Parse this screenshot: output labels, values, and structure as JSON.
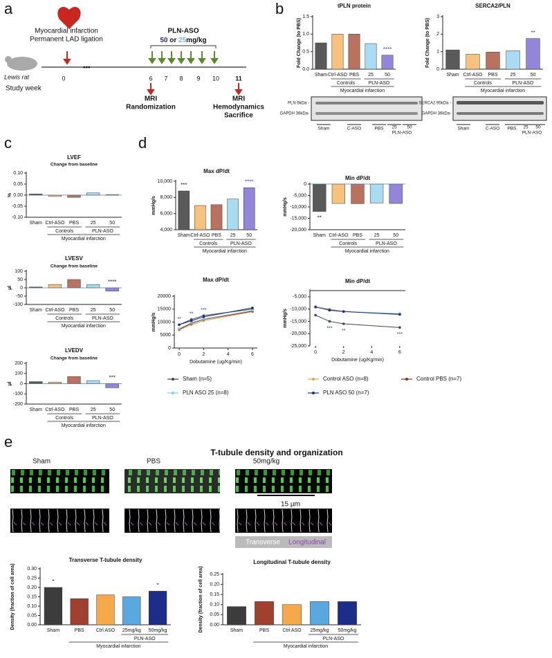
{
  "panel_letters": [
    "a",
    "b",
    "c",
    "d",
    "e"
  ],
  "panel_a": {
    "animal": "Lewis rat",
    "mi": "Myocardial infarction",
    "ligation": "Permanent LAD ligation",
    "aso": "PLN-ASO",
    "dose50": "50",
    "or": " or ",
    "dose25": "25",
    "unit": "mg/kg",
    "study_week": "Study week",
    "weeks": [
      "0",
      "6",
      "7",
      "8",
      "9",
      "10",
      "11"
    ],
    "mri1": "MRI",
    "randomization": "Randomization",
    "mri2": "MRI",
    "hemodynamics": "Hemodynamics",
    "sacrifice": "Sacrifice"
  },
  "panel_b_blots": {
    "pln": "PLN 6kDa -",
    "gapdh1": "GAPDH 36kDa-",
    "lanes1": [
      "Sham",
      "C-ASO",
      "PBS",
      "25",
      "50"
    ],
    "aso1": "PLN-ASO",
    "serca": "SERCA2 95kDa -",
    "gapdh2": "GAPDH 36kDa-",
    "lanes2": [
      "Sham",
      "C-ASO",
      "PBS",
      "25",
      "50"
    ],
    "aso2": "PLN-ASO"
  },
  "panel_e": {
    "title": "T-tubule density and organization",
    "images": [
      "Sham",
      "PBS",
      "50mg/kg"
    ],
    "scale": "15 µm",
    "transverse": "Transverse",
    "longitudinal": "Longitudinal"
  },
  "chart_data": [
    {
      "type": "bar",
      "title": "tPLN protein",
      "ylabel": "Fold Change (to PBS)",
      "categories": [
        "Sham",
        "Ctrl-ASO",
        "PBS",
        "25",
        "50"
      ],
      "values": [
        0.75,
        1.0,
        1.0,
        0.73,
        0.4
      ],
      "colors": [
        "#5a5a5a",
        "#f7c27e",
        "#b97260",
        "#a9dcf3",
        "#9385d9"
      ],
      "ylim": [
        0,
        1.5
      ],
      "yticks": [
        {
          "value": 0,
          "label": "0.0"
        },
        0.5,
        {
          "value": 1,
          "label": "1.0"
        },
        1.5
      ],
      "stars": [
        null,
        null,
        null,
        null,
        "****"
      ],
      "star_colors": [
        null,
        null,
        null,
        null,
        "#3b3bb0"
      ],
      "groups": {
        "controls": "Controls",
        "aso": "PLN-ASO",
        "mi": "Myocardial infarction"
      }
    },
    {
      "type": "bar",
      "title": "SERCA2/PLN",
      "ylabel": "Fold Change (to PBS)",
      "categories": [
        "Sham",
        "Ctrl-ASO",
        "PBS",
        "25",
        "50"
      ],
      "values": [
        1.1,
        0.85,
        0.98,
        1.05,
        1.75
      ],
      "colors": [
        "#5a5a5a",
        "#f7c27e",
        "#b97260",
        "#a9dcf3",
        "#9385d9"
      ],
      "ylim": [
        0,
        3
      ],
      "yticks": [
        0,
        1,
        2,
        3
      ],
      "stars": [
        null,
        null,
        null,
        null,
        "**"
      ],
      "star_colors": [
        null,
        null,
        null,
        null,
        "#3b3bb0"
      ],
      "groups": {
        "controls": "Controls",
        "aso": "PLN-ASO",
        "mi": "Myocardial infarction"
      }
    },
    {
      "type": "bar",
      "title": "LVEF",
      "subtitle": "Change from baseline",
      "ylabel": "%",
      "categories": [
        "Sham",
        "Ctrl-ASO",
        "PBS",
        "25",
        "50"
      ],
      "values": [
        0.005,
        -0.006,
        -0.01,
        0.01,
        0.002
      ],
      "colors": [
        "#5a5a5a",
        "#f7c27e",
        "#b97260",
        "#a9dcf3",
        "#9385d9"
      ],
      "ylim": [
        -0.1,
        0.1
      ],
      "yticks": [
        {
          "value": -0.1,
          "label": "-0.10"
        },
        {
          "value": -0.05,
          "label": "-0.05"
        },
        {
          "value": 0,
          "label": "0.00"
        },
        {
          "value": 0.05,
          "label": "0.05"
        },
        {
          "value": 0.1,
          "label": "0.10"
        }
      ],
      "stars": [
        null,
        null,
        null,
        null,
        null
      ],
      "star_colors": [
        null,
        null,
        null,
        null,
        null
      ],
      "groups": {
        "controls": "Controls",
        "aso": "PLN-ASO",
        "mi": "Myocardial infarction"
      }
    },
    {
      "type": "bar",
      "title": "LVESV",
      "subtitle": "Change from baseline",
      "ylabel": "µl",
      "categories": [
        "Sham",
        "Ctrl-ASO",
        "PBS",
        "25",
        "50"
      ],
      "values": [
        5,
        20,
        50,
        20,
        -20
      ],
      "colors": [
        "#5a5a5a",
        "#f7c27e",
        "#b97260",
        "#a9dcf3",
        "#9385d9"
      ],
      "ylim": [
        -100,
        100
      ],
      "yticks": [
        -100,
        -50,
        0,
        50,
        100
      ],
      "stars": [
        null,
        null,
        null,
        null,
        "****"
      ],
      "star_colors": [
        null,
        null,
        null,
        null,
        "#222222"
      ],
      "groups": {
        "controls": "Controls",
        "aso": "PLN-ASO",
        "mi": "Myocardial infarction"
      }
    },
    {
      "type": "bar",
      "title": "LVEDV",
      "subtitle": "Change from baseline",
      "ylabel": "µl",
      "categories": [
        "Sham",
        "Ctrl-ASO",
        "PBS",
        "25",
        "50"
      ],
      "values": [
        20,
        15,
        70,
        30,
        -40
      ],
      "colors": [
        "#5a5a5a",
        "#f7c27e",
        "#b97260",
        "#a9dcf3",
        "#9385d9"
      ],
      "ylim": [
        -200,
        200
      ],
      "yticks": [
        -200,
        -100,
        0,
        100,
        200
      ],
      "stars": [
        null,
        null,
        null,
        null,
        "***"
      ],
      "star_colors": [
        null,
        null,
        null,
        null,
        "#222222"
      ],
      "groups": {
        "controls": "Controls",
        "aso": "PLN-ASO",
        "mi": "Myocardial infarction"
      }
    },
    {
      "type": "bar",
      "title": "Max dP/dt",
      "ylabel": "mmHg/s",
      "categories": [
        "Sham",
        "Ctrl-ASO",
        "PBS",
        "25",
        "50"
      ],
      "values": [
        8800,
        7000,
        7100,
        7800,
        9200
      ],
      "colors": [
        "#5a5a5a",
        "#f7c27e",
        "#b97260",
        "#a9dcf3",
        "#9385d9"
      ],
      "ylim": [
        4000,
        10000
      ],
      "yticks": [
        {
          "value": 4000,
          "label": "4,000"
        },
        {
          "value": 6000,
          "label": "6,000"
        },
        {
          "value": 8000,
          "label": "8,000"
        },
        {
          "value": 10000,
          "label": "10,000"
        }
      ],
      "stars": [
        "***",
        null,
        null,
        null,
        "****"
      ],
      "star_colors": [
        "#222222",
        null,
        null,
        null,
        "#3b3bb0"
      ],
      "groups": {
        "controls": "Controls",
        "aso": "PLN-ASO",
        "mi": "Myocardial infarction"
      }
    },
    {
      "type": "bar",
      "title": "Min dP/dt",
      "ylabel": "mmHg/s",
      "categories": [
        "Sham",
        "Ctrl-ASO",
        "PBS",
        "25",
        "50"
      ],
      "values": [
        -12000,
        -8500,
        -8600,
        -8300,
        -8500
      ],
      "colors": [
        "#5a5a5a",
        "#f7c27e",
        "#b97260",
        "#a9dcf3",
        "#9385d9"
      ],
      "ylim": [
        -20000,
        0
      ],
      "yticks": [
        0,
        {
          "value": -5000,
          "label": "-5,000"
        },
        {
          "value": -10000,
          "label": "-10,000"
        },
        {
          "value": -15000,
          "label": "-15,000"
        },
        {
          "value": -20000,
          "label": "-20,000"
        }
      ],
      "stars": [
        "**",
        null,
        null,
        null,
        null
      ],
      "star_colors": [
        "#222222",
        null,
        null,
        null,
        null
      ],
      "groups": {
        "controls": "Controls",
        "aso": "PLN-ASO",
        "mi": "Myocardial infarction"
      }
    },
    {
      "type": "line",
      "title": "Max dP/dt",
      "ylabel": "mmHg/s",
      "xlabel": "Dobutamine (ug/Kg/min)",
      "x": [
        0,
        1,
        2,
        6
      ],
      "xlim": [
        -0.4,
        6.4
      ],
      "xticks": [
        0,
        2,
        4,
        6
      ],
      "ylim": [
        0,
        20000
      ],
      "yticks": [
        0,
        5000,
        10000,
        15000,
        20000
      ],
      "stars": [
        {
          "x": 0,
          "text": "**"
        },
        {
          "x": 1,
          "text": "**"
        },
        {
          "x": 2,
          "text": "***"
        }
      ],
      "series": [
        {
          "name": "Sham (n=5)",
          "color": "#444444",
          "values": [
            9000,
            11000,
            12500,
            15000
          ]
        },
        {
          "name": "Control ASO (n=8)",
          "color": "#f0a040",
          "values": [
            7000,
            9000,
            10500,
            14000
          ]
        },
        {
          "name": "Control PBS (n=7)",
          "color": "#8b2a1a",
          "values": [
            7200,
            9500,
            11000,
            14200
          ]
        },
        {
          "name": "PLN ASO 25 (n=8)",
          "color": "#7fd0f0",
          "values": [
            7500,
            9800,
            11200,
            14500
          ]
        },
        {
          "name": "PLN ASO 50 (n=7)",
          "color": "#1a2a8a",
          "values": [
            9000,
            10500,
            12000,
            15500
          ]
        }
      ]
    },
    {
      "type": "line",
      "title": "Min dP/dt",
      "ylabel": "mmHg/s",
      "xlabel": "Dobutamine (ug/Kg/min)",
      "x": [
        0,
        1,
        2,
        6
      ],
      "xlim": [
        -0.4,
        6.4
      ],
      "xticks": [
        0,
        2,
        4,
        6
      ],
      "ylim": [
        -25000,
        -2500
      ],
      "yticks": [
        {
          "value": -5000,
          "label": "-5,000"
        },
        {
          "value": -10000,
          "label": "-10,000"
        },
        {
          "value": -15000,
          "label": "-15,000"
        },
        {
          "value": -20000,
          "label": "-20,000"
        },
        {
          "value": -25000,
          "label": "-25,000"
        }
      ],
      "stars": [
        {
          "x": 1,
          "text": "***"
        },
        {
          "x": 2,
          "text": "**"
        },
        {
          "x": 6,
          "text": "***"
        }
      ],
      "series": [
        {
          "color": "#444444",
          "values": [
            -12500,
            -15000,
            -16000,
            -17500
          ]
        },
        {
          "color": "#f0a040",
          "values": [
            -9000,
            -10000,
            -11000,
            -12000
          ]
        },
        {
          "color": "#8b2a1a",
          "values": [
            -9000,
            -10500,
            -11000,
            -12000
          ]
        },
        {
          "color": "#7fd0f0",
          "values": [
            -9000,
            -10200,
            -11000,
            -11800
          ]
        },
        {
          "color": "#1a2a8a",
          "values": [
            -9200,
            -10400,
            -11000,
            -12200
          ]
        }
      ]
    },
    {
      "type": "bar",
      "title": "Transverse T-tubule density",
      "ylabel": "Density (fraction of cell area)",
      "categories": [
        "Sham",
        "PBS",
        "Ctrl ASO",
        "25mg/kg",
        "50mg/kg"
      ],
      "values": [
        0.2,
        0.14,
        0.16,
        0.15,
        0.18
      ],
      "colors": [
        "#3c3c3c",
        "#a0402f",
        "#f5a94b",
        "#5aa8e0",
        "#1e2d8a"
      ],
      "ylim": [
        0,
        0.3
      ],
      "yticks": [
        {
          "value": 0,
          "label": "0.00"
        },
        0.05,
        {
          "value": 0.1,
          "label": "0.10"
        },
        0.15,
        {
          "value": 0.2,
          "label": "0.20"
        },
        0.25,
        {
          "value": 0.3,
          "label": "0.30"
        }
      ],
      "stars": [
        "*",
        null,
        null,
        null,
        "*"
      ],
      "star_colors": [
        "#222222",
        null,
        null,
        null,
        "#222222"
      ],
      "groups": {
        "aso": "PLN-ASO",
        "mi": "Myocardial infarction"
      }
    },
    {
      "type": "bar",
      "title": "Longitudinal T-tubule density",
      "ylabel": "Density (fraction of cell area)",
      "categories": [
        "Sham",
        "PBS",
        "Ctrl ASO",
        "25mg/kg",
        "50mg/kg"
      ],
      "values": [
        0.09,
        0.115,
        0.1,
        0.115,
        0.115
      ],
      "colors": [
        "#3c3c3c",
        "#a0402f",
        "#f5a94b",
        "#5aa8e0",
        "#1e2d8a"
      ],
      "ylim": [
        0,
        0.25
      ],
      "yticks": [
        {
          "value": 0,
          "label": "0.00"
        },
        0.05,
        {
          "value": 0.1,
          "label": "0.10"
        },
        0.15,
        {
          "value": 0.2,
          "label": "0.20"
        },
        0.25
      ],
      "stars": [
        null,
        null,
        null,
        null,
        null
      ],
      "star_colors": [
        null,
        null,
        null,
        null,
        null
      ],
      "groups": {
        "aso": "PLN-ASO",
        "mi": "Myocardial infarction"
      }
    }
  ]
}
